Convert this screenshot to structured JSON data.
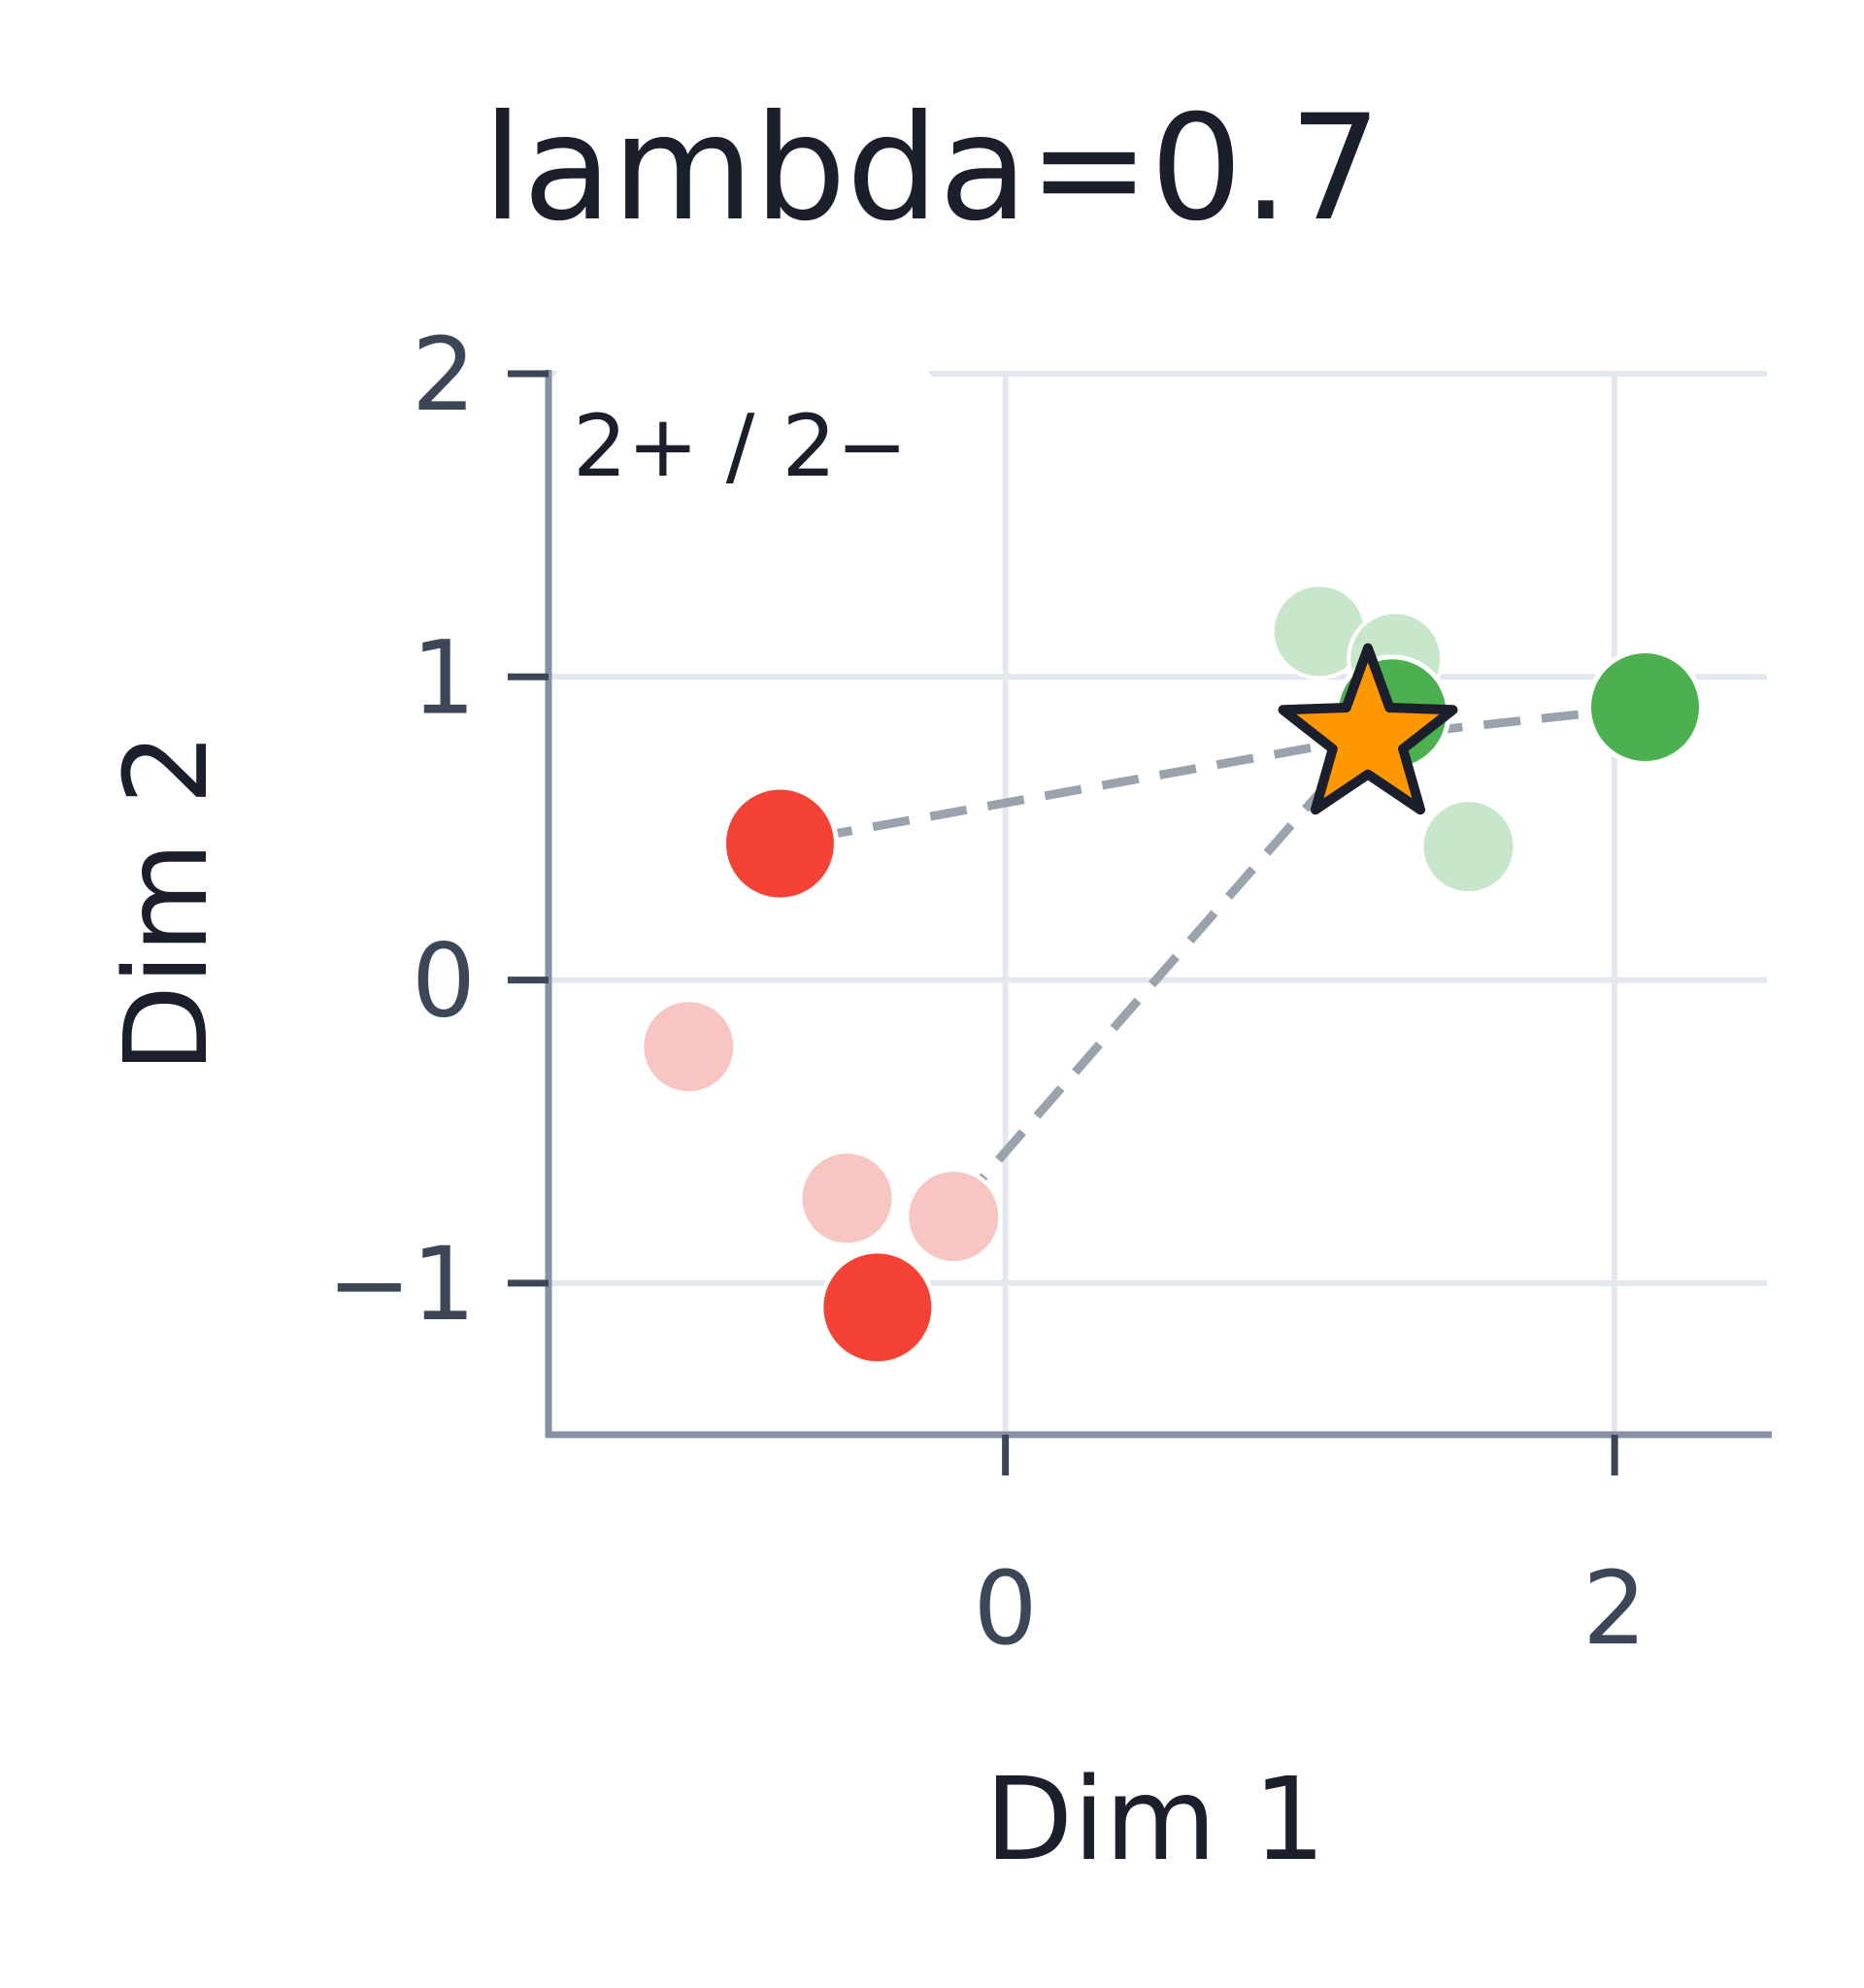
{
  "chart_data": {
    "type": "scatter",
    "title": "lambda=0.7",
    "xlabel": "Dim 1",
    "ylabel": "Dim 2",
    "xlim": [
      -1.5,
      2.5
    ],
    "ylim": [
      -1.5,
      2.0
    ],
    "xticks": [
      0,
      2
    ],
    "yticks": [
      -1,
      0,
      1,
      2
    ],
    "xtick_labels": [
      "0",
      "2"
    ],
    "ytick_labels": [
      "−1",
      "0",
      "1",
      "2"
    ],
    "grid": true,
    "annotation": "2+ / 2−",
    "colors": {
      "positive": "#4caf50",
      "positive_faded": "#c8e6c9",
      "negative": "#f44336",
      "negative_faded": "#f8c6c2",
      "query": "#ff9800",
      "link": "#9aa3ad",
      "grid": "#e3e7ee",
      "axis": "#8592a6"
    },
    "faded_positive": [
      {
        "x": 1.03,
        "y": 1.15
      },
      {
        "x": 1.28,
        "y": 1.06
      },
      {
        "x": 1.52,
        "y": 0.44
      }
    ],
    "faded_negative": [
      {
        "x": -1.04,
        "y": -0.22
      },
      {
        "x": -0.52,
        "y": -0.72
      },
      {
        "x": -0.17,
        "y": -0.78
      }
    ],
    "selected_positive": [
      {
        "x": 1.27,
        "y": 0.88
      },
      {
        "x": 2.1,
        "y": 0.9
      }
    ],
    "selected_negative": [
      {
        "x": -0.74,
        "y": 0.45
      },
      {
        "x": -0.42,
        "y": -1.08
      }
    ],
    "query": {
      "x": 1.19,
      "y": 0.8
    },
    "links": [
      {
        "from": {
          "x": 1.19,
          "y": 0.8
        },
        "to": {
          "x": 2.1,
          "y": 0.9
        }
      },
      {
        "from": {
          "x": 1.19,
          "y": 0.8
        },
        "to": {
          "x": -0.74,
          "y": 0.45
        }
      },
      {
        "from": {
          "x": 1.19,
          "y": 0.8
        },
        "to": {
          "x": -0.22,
          "y": -0.82
        }
      }
    ]
  }
}
